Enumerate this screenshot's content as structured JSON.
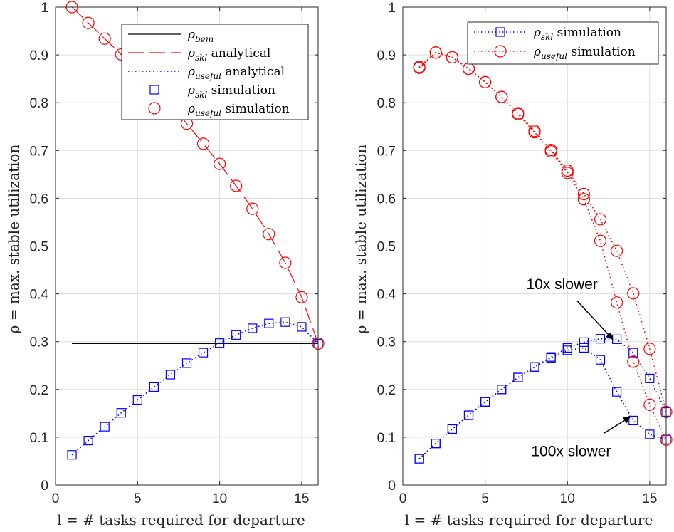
{
  "chart_data": [
    {
      "type": "line",
      "panel": "left",
      "xlabel": "l = # tasks required for departure",
      "ylabel": "ρ = max. stable utilization",
      "xlim": [
        0,
        16
      ],
      "ylim": [
        0,
        1
      ],
      "xticks": [
        0,
        5,
        10,
        15
      ],
      "yticks": [
        0,
        0.1,
        0.2,
        0.3,
        0.4,
        0.5,
        0.6,
        0.7,
        0.8,
        0.9,
        1
      ],
      "grid": true,
      "legend_position": "top-right",
      "series": [
        {
          "name": "ρ_bem",
          "label_main": "ρ",
          "label_sub": "bem",
          "label_tail": "",
          "style": "solid",
          "color": "#000000",
          "marker": "none",
          "x": [
            1,
            16
          ],
          "y": [
            0.296,
            0.296
          ]
        },
        {
          "name": "ρ_skl analytical",
          "label_main": "ρ",
          "label_sub": "skl",
          "label_tail": " analytical",
          "style": "dashed",
          "color": "#ff0000",
          "marker": "none",
          "x": [
            1,
            2,
            3,
            4,
            5,
            6,
            7,
            8,
            9,
            10,
            11,
            12,
            13,
            14,
            15,
            16
          ],
          "y": [
            1.0,
            0.967,
            0.934,
            0.901,
            0.867,
            0.833,
            0.797,
            0.756,
            0.714,
            0.672,
            0.626,
            0.578,
            0.525,
            0.465,
            0.393,
            0.296
          ]
        },
        {
          "name": "ρ_useful analytical",
          "label_main": "ρ",
          "label_sub": "useful",
          "label_tail": " analytical",
          "style": "dotted",
          "color": "#0000ff",
          "marker": "none",
          "x": [
            1,
            2,
            3,
            4,
            5,
            6,
            7,
            8,
            9,
            10,
            11,
            12,
            13,
            14,
            15,
            16
          ],
          "y": [
            0.063,
            0.093,
            0.122,
            0.151,
            0.178,
            0.205,
            0.231,
            0.255,
            0.277,
            0.297,
            0.314,
            0.328,
            0.338,
            0.341,
            0.331,
            0.296
          ]
        },
        {
          "name": "ρ_skl simulation",
          "label_main": "ρ",
          "label_sub": "skl",
          "label_tail": " simulation",
          "style": "none",
          "color": "#0000ff",
          "marker": "square",
          "x": [
            1,
            2,
            3,
            4,
            5,
            6,
            7,
            8,
            9,
            10,
            11,
            12,
            13,
            14,
            15,
            16
          ],
          "y": [
            0.063,
            0.093,
            0.122,
            0.151,
            0.178,
            0.205,
            0.231,
            0.255,
            0.277,
            0.297,
            0.314,
            0.328,
            0.338,
            0.341,
            0.331,
            0.296
          ]
        },
        {
          "name": "ρ_useful simulation",
          "label_main": "ρ",
          "label_sub": "useful",
          "label_tail": " simulation",
          "style": "none",
          "color": "#ff0000",
          "marker": "circle",
          "x": [
            1,
            2,
            3,
            4,
            5,
            6,
            7,
            8,
            9,
            10,
            11,
            12,
            13,
            14,
            15,
            16
          ],
          "y": [
            1.0,
            0.967,
            0.934,
            0.901,
            0.867,
            0.833,
            0.797,
            0.756,
            0.714,
            0.672,
            0.626,
            0.578,
            0.525,
            0.465,
            0.393,
            0.296
          ]
        }
      ],
      "annotations": []
    },
    {
      "type": "line",
      "panel": "right",
      "xlabel": "l = # tasks required for departure",
      "ylabel": "ρ = max. stable utilization",
      "xlim": [
        0,
        16
      ],
      "ylim": [
        0,
        1
      ],
      "xticks": [
        0,
        5,
        10,
        15
      ],
      "yticks": [
        0,
        0.1,
        0.2,
        0.3,
        0.4,
        0.5,
        0.6,
        0.7,
        0.8,
        0.9,
        1
      ],
      "grid": true,
      "legend_position": "top-right",
      "series": [
        {
          "name": "ρ_skl simulation (10x slower)",
          "label_main": "ρ",
          "label_sub": "skl",
          "label_tail": " simulation",
          "in_legend": true,
          "style": "dotted",
          "color": "#0000ff",
          "marker": "square",
          "x": [
            1,
            2,
            3,
            4,
            5,
            6,
            7,
            8,
            9,
            10,
            11,
            12,
            13,
            14,
            15,
            16
          ],
          "y": [
            0.055,
            0.087,
            0.117,
            0.146,
            0.174,
            0.2,
            0.225,
            0.247,
            0.268,
            0.287,
            0.299,
            0.306,
            0.305,
            0.277,
            0.223,
            0.153
          ]
        },
        {
          "name": "ρ_skl simulation (100x slower)",
          "in_legend": false,
          "style": "dotted",
          "color": "#0000ff",
          "marker": "square",
          "x": [
            1,
            2,
            3,
            4,
            5,
            6,
            7,
            8,
            9,
            10,
            11,
            12,
            13,
            14,
            15,
            16
          ],
          "y": [
            0.055,
            0.087,
            0.117,
            0.146,
            0.174,
            0.2,
            0.225,
            0.247,
            0.266,
            0.282,
            0.287,
            0.262,
            0.195,
            0.135,
            0.106,
            0.095
          ]
        },
        {
          "name": "ρ_useful simulation (10x slower)",
          "label_main": "ρ",
          "label_sub": "useful",
          "label_tail": " simulation",
          "in_legend": true,
          "style": "dotted",
          "color": "#ff0000",
          "marker": "circle",
          "x": [
            1,
            2,
            3,
            4,
            5,
            6,
            7,
            8,
            9,
            10,
            11,
            12,
            13,
            14,
            15,
            16
          ],
          "y": [
            0.875,
            0.905,
            0.895,
            0.871,
            0.843,
            0.812,
            0.778,
            0.741,
            0.701,
            0.658,
            0.609,
            0.556,
            0.49,
            0.401,
            0.285,
            0.153
          ]
        },
        {
          "name": "ρ_useful simulation (100x slower)",
          "in_legend": false,
          "style": "dotted",
          "color": "#ff0000",
          "marker": "circle",
          "x": [
            1,
            2,
            3,
            4,
            5,
            6,
            7,
            8,
            9,
            10,
            11,
            12,
            13,
            14,
            15,
            16
          ],
          "y": [
            0.873,
            0.905,
            0.895,
            0.871,
            0.843,
            0.812,
            0.776,
            0.738,
            0.698,
            0.653,
            0.598,
            0.511,
            0.382,
            0.258,
            0.168,
            0.095
          ]
        }
      ],
      "annotations": [
        {
          "text": "10x slower",
          "tail": [
            10.6,
            0.385
          ],
          "head": [
            12.75,
            0.305
          ],
          "text_pos": [
            7.5,
            0.41
          ]
        },
        {
          "text": "100x slower",
          "tail": [
            12.2,
            0.108
          ],
          "head": [
            13.8,
            0.142
          ],
          "text_pos": [
            7.8,
            0.06
          ]
        }
      ]
    }
  ]
}
